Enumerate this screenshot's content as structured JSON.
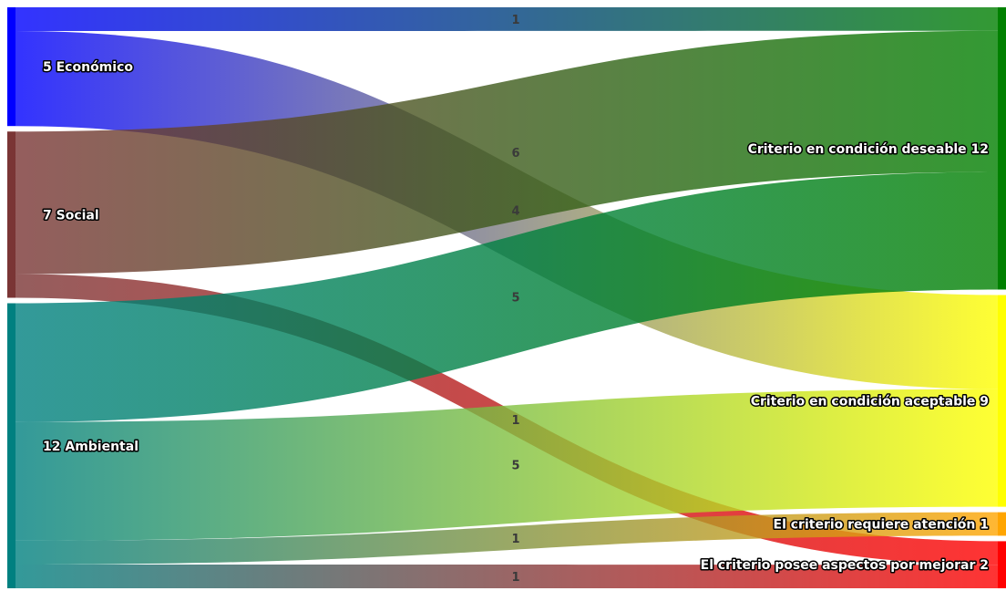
{
  "chart_data": {
    "type": "sankey",
    "sources": [
      {
        "id": "eco",
        "label": "5 Económico",
        "value": 5,
        "color": "#0000ff"
      },
      {
        "id": "soc",
        "label": "7 Social",
        "value": 7,
        "color": "#7a3535"
      },
      {
        "id": "amb",
        "label": "12 Ambiental",
        "value": 12,
        "color": "#008080"
      }
    ],
    "targets": [
      {
        "id": "des",
        "label": "Criterio en condición deseable 12",
        "value": 12,
        "color": "#008000"
      },
      {
        "id": "acp",
        "label": "Criterio en condición aceptable 9",
        "value": 9,
        "color": "#ffff00"
      },
      {
        "id": "ate",
        "label": "El criterio requiere atención 1",
        "value": 1,
        "color": "#ffa500"
      },
      {
        "id": "mej",
        "label": "El criterio posee aspectos por mejorar 2",
        "value": 2,
        "color": "#ff0000"
      }
    ],
    "links": [
      {
        "source": "eco",
        "target": "des",
        "value": 1,
        "label": "1"
      },
      {
        "source": "eco",
        "target": "acp",
        "value": 4,
        "label": "4"
      },
      {
        "source": "soc",
        "target": "des",
        "value": 6,
        "label": "6"
      },
      {
        "source": "soc",
        "target": "mej",
        "value": 1,
        "label": "1"
      },
      {
        "source": "amb",
        "target": "des",
        "value": 5,
        "label": "5"
      },
      {
        "source": "amb",
        "target": "acp",
        "value": 5,
        "label": "5"
      },
      {
        "source": "amb",
        "target": "ate",
        "value": 1,
        "label": "1"
      },
      {
        "source": "amb",
        "target": "mej",
        "value": 1,
        "label": "1"
      }
    ]
  }
}
